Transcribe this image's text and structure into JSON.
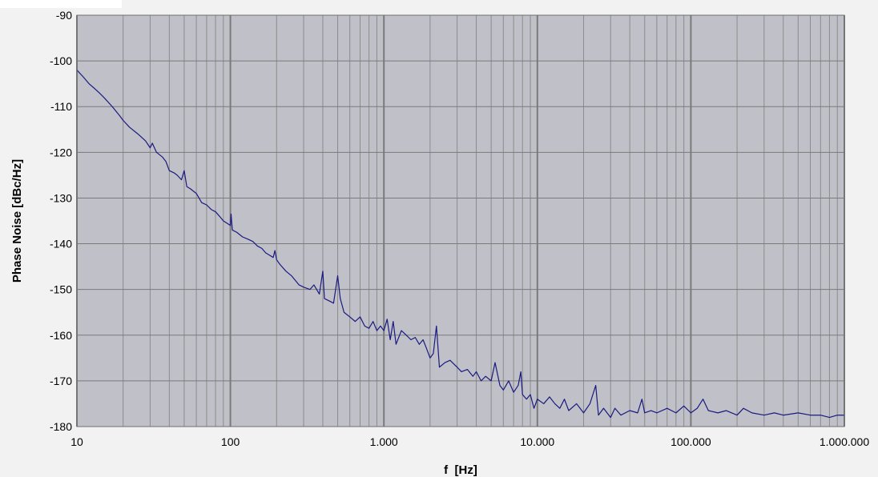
{
  "chart_data": {
    "type": "line",
    "title": "",
    "xlabel": "f  [Hz]",
    "ylabel": "Phase Noise [dBc/Hz]",
    "xscale": "log",
    "xlim": [
      10,
      1000000
    ],
    "ylim": [
      -180,
      -90
    ],
    "grid": true,
    "legend": "none",
    "colors": {
      "plot_background": "#c0c0c8",
      "page_background": "#f2f2f2",
      "line": "#1a1a80",
      "major_grid": "#7a7a7a",
      "minor_grid": "#8c8c8c"
    },
    "x_ticks": [
      {
        "value": 10,
        "label": "10"
      },
      {
        "value": 100,
        "label": "100"
      },
      {
        "value": 1000,
        "label": "1.000"
      },
      {
        "value": 10000,
        "label": "10.000"
      },
      {
        "value": 100000,
        "label": "100.000"
      },
      {
        "value": 1000000,
        "label": "1.000.000"
      }
    ],
    "y_ticks": [
      {
        "value": -90,
        "label": "-90"
      },
      {
        "value": -100,
        "label": "-100"
      },
      {
        "value": -110,
        "label": "-110"
      },
      {
        "value": -120,
        "label": "-120"
      },
      {
        "value": -130,
        "label": "-130"
      },
      {
        "value": -140,
        "label": "-140"
      },
      {
        "value": -150,
        "label": "-150"
      },
      {
        "value": -160,
        "label": "-160"
      },
      {
        "value": -170,
        "label": "-170"
      },
      {
        "value": -180,
        "label": "-180"
      }
    ],
    "series": [
      {
        "points": [
          [
            10,
            -102
          ],
          [
            11,
            -103.5
          ],
          [
            12,
            -105
          ],
          [
            13,
            -106
          ],
          [
            14,
            -107
          ],
          [
            15,
            -108
          ],
          [
            17,
            -110
          ],
          [
            19,
            -112
          ],
          [
            20,
            -113
          ],
          [
            22,
            -114.5
          ],
          [
            25,
            -116
          ],
          [
            28,
            -117.5
          ],
          [
            30,
            -119
          ],
          [
            31,
            -118
          ],
          [
            33,
            -120
          ],
          [
            36,
            -121
          ],
          [
            38,
            -122
          ],
          [
            40,
            -124
          ],
          [
            43,
            -124.5
          ],
          [
            45,
            -125
          ],
          [
            48,
            -126
          ],
          [
            50,
            -124
          ],
          [
            52,
            -127.5
          ],
          [
            55,
            -128
          ],
          [
            60,
            -129
          ],
          [
            65,
            -131
          ],
          [
            70,
            -131.5
          ],
          [
            75,
            -132.5
          ],
          [
            80,
            -133
          ],
          [
            85,
            -134
          ],
          [
            90,
            -135
          ],
          [
            95,
            -135.5
          ],
          [
            100,
            -136
          ],
          [
            101,
            -133.5
          ],
          [
            103,
            -137
          ],
          [
            110,
            -137.5
          ],
          [
            120,
            -138.5
          ],
          [
            130,
            -139
          ],
          [
            140,
            -139.5
          ],
          [
            150,
            -140.5
          ],
          [
            160,
            -141
          ],
          [
            170,
            -142
          ],
          [
            180,
            -142.5
          ],
          [
            190,
            -143
          ],
          [
            195,
            -141.5
          ],
          [
            200,
            -143.5
          ],
          [
            210,
            -144.5
          ],
          [
            230,
            -146
          ],
          [
            250,
            -147
          ],
          [
            280,
            -149
          ],
          [
            300,
            -149.5
          ],
          [
            330,
            -150
          ],
          [
            350,
            -149
          ],
          [
            380,
            -151
          ],
          [
            400,
            -146
          ],
          [
            410,
            -152
          ],
          [
            440,
            -152.5
          ],
          [
            470,
            -153
          ],
          [
            500,
            -147
          ],
          [
            520,
            -152
          ],
          [
            550,
            -155
          ],
          [
            600,
            -156
          ],
          [
            650,
            -157
          ],
          [
            700,
            -156
          ],
          [
            750,
            -158
          ],
          [
            800,
            -158.5
          ],
          [
            850,
            -157
          ],
          [
            900,
            -159
          ],
          [
            950,
            -158
          ],
          [
            1000,
            -159
          ],
          [
            1050,
            -156.5
          ],
          [
            1100,
            -161
          ],
          [
            1150,
            -157
          ],
          [
            1200,
            -162
          ],
          [
            1300,
            -159
          ],
          [
            1400,
            -160
          ],
          [
            1500,
            -161
          ],
          [
            1600,
            -160.5
          ],
          [
            1700,
            -162
          ],
          [
            1800,
            -161
          ],
          [
            1900,
            -163
          ],
          [
            2000,
            -165
          ],
          [
            2100,
            -164
          ],
          [
            2200,
            -158
          ],
          [
            2300,
            -167
          ],
          [
            2500,
            -166
          ],
          [
            2700,
            -165.5
          ],
          [
            3000,
            -167
          ],
          [
            3200,
            -168
          ],
          [
            3500,
            -167.5
          ],
          [
            3800,
            -169
          ],
          [
            4000,
            -168
          ],
          [
            4300,
            -170
          ],
          [
            4600,
            -169
          ],
          [
            5000,
            -170
          ],
          [
            5300,
            -166
          ],
          [
            5700,
            -171
          ],
          [
            6000,
            -172
          ],
          [
            6500,
            -170
          ],
          [
            7000,
            -172.5
          ],
          [
            7500,
            -171
          ],
          [
            7800,
            -168
          ],
          [
            8000,
            -173
          ],
          [
            8500,
            -174
          ],
          [
            9000,
            -173
          ],
          [
            9500,
            -176
          ],
          [
            10000,
            -174
          ],
          [
            11000,
            -175
          ],
          [
            12000,
            -173.5
          ],
          [
            13000,
            -175
          ],
          [
            14000,
            -176
          ],
          [
            15000,
            -174
          ],
          [
            16000,
            -176.5
          ],
          [
            18000,
            -175
          ],
          [
            20000,
            -177
          ],
          [
            22000,
            -175
          ],
          [
            24000,
            -171
          ],
          [
            25000,
            -177.5
          ],
          [
            27000,
            -176
          ],
          [
            30000,
            -178
          ],
          [
            32000,
            -176
          ],
          [
            35000,
            -177.5
          ],
          [
            40000,
            -176.5
          ],
          [
            45000,
            -177
          ],
          [
            48000,
            -174
          ],
          [
            50000,
            -177
          ],
          [
            55000,
            -176.5
          ],
          [
            60000,
            -177
          ],
          [
            70000,
            -176
          ],
          [
            80000,
            -177
          ],
          [
            90000,
            -175.5
          ],
          [
            100000,
            -177
          ],
          [
            110000,
            -176
          ],
          [
            120000,
            -174
          ],
          [
            130000,
            -176.5
          ],
          [
            150000,
            -177
          ],
          [
            170000,
            -176.5
          ],
          [
            200000,
            -177.5
          ],
          [
            220000,
            -176
          ],
          [
            250000,
            -177
          ],
          [
            300000,
            -177.5
          ],
          [
            350000,
            -177
          ],
          [
            400000,
            -177.5
          ],
          [
            500000,
            -177
          ],
          [
            600000,
            -177.5
          ],
          [
            700000,
            -177.5
          ],
          [
            800000,
            -178
          ],
          [
            900000,
            -177.5
          ],
          [
            1000000,
            -177.5
          ]
        ]
      }
    ]
  }
}
